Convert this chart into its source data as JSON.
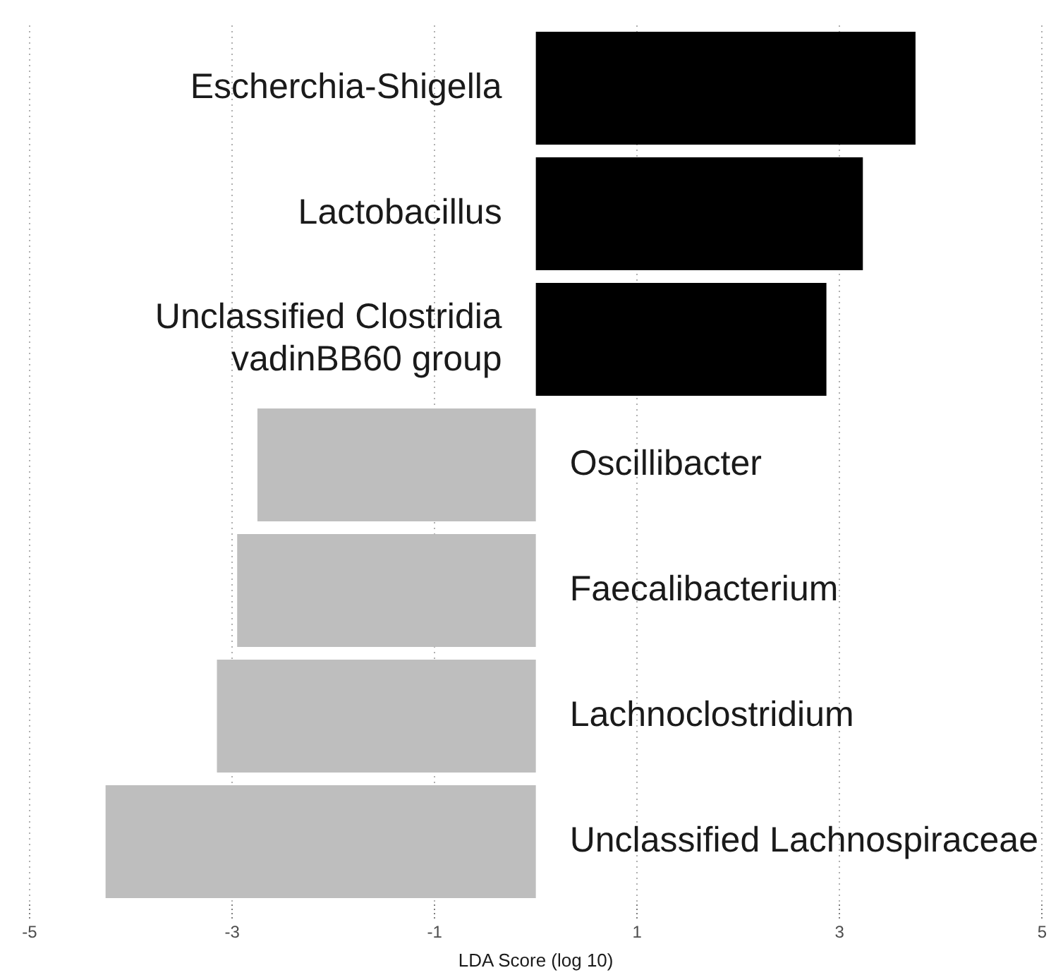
{
  "chart_data": {
    "type": "bar",
    "orientation": "horizontal",
    "xlabel": "LDA Score (log 10)",
    "categories": [
      "Escherchia-Shigella",
      "Lactobacillus",
      "Unclassified Clostridia\nvadinBB60 group",
      "Oscillibacter",
      "Faecalibacterium",
      "Lachnoclostridium",
      "Unclassified Lachnospiraceae"
    ],
    "values": [
      3.75,
      3.23,
      2.87,
      -2.75,
      -2.95,
      -3.15,
      -4.25
    ],
    "colors": [
      "#000000",
      "#000000",
      "#000000",
      "#bebebe",
      "#bebebe",
      "#bebebe",
      "#bebebe"
    ],
    "xlim": [
      -5,
      5
    ],
    "xticks": [
      -5,
      -3,
      -1,
      1,
      3,
      5
    ],
    "grid": "x"
  }
}
